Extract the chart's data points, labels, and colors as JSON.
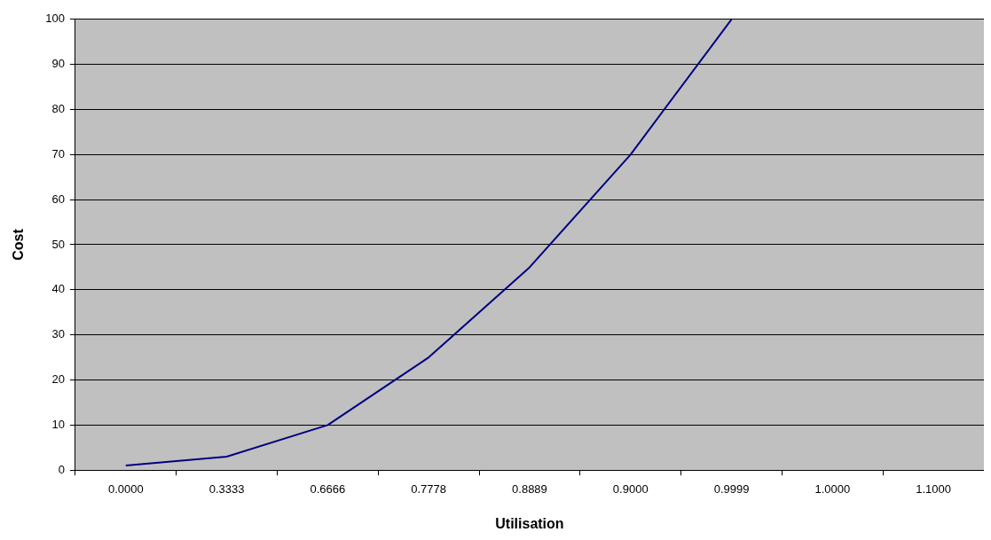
{
  "chart_data": {
    "type": "line",
    "xlabel": "Utilisation",
    "ylabel": "Cost",
    "categories": [
      "0.0000",
      "0.3333",
      "0.6666",
      "0.7778",
      "0.8889",
      "0.9000",
      "0.9999",
      "1.0000",
      "1.1000"
    ],
    "series": [
      {
        "color": "#000080",
        "values": [
          1,
          3,
          10,
          25,
          45,
          70,
          100,
          null,
          null
        ]
      }
    ],
    "ylim": [
      0,
      100
    ],
    "yticks": [
      0,
      10,
      20,
      30,
      40,
      50,
      60,
      70,
      80,
      90,
      100
    ],
    "grid": "y",
    "legend": false,
    "marker": "none",
    "line_style": "solid"
  }
}
